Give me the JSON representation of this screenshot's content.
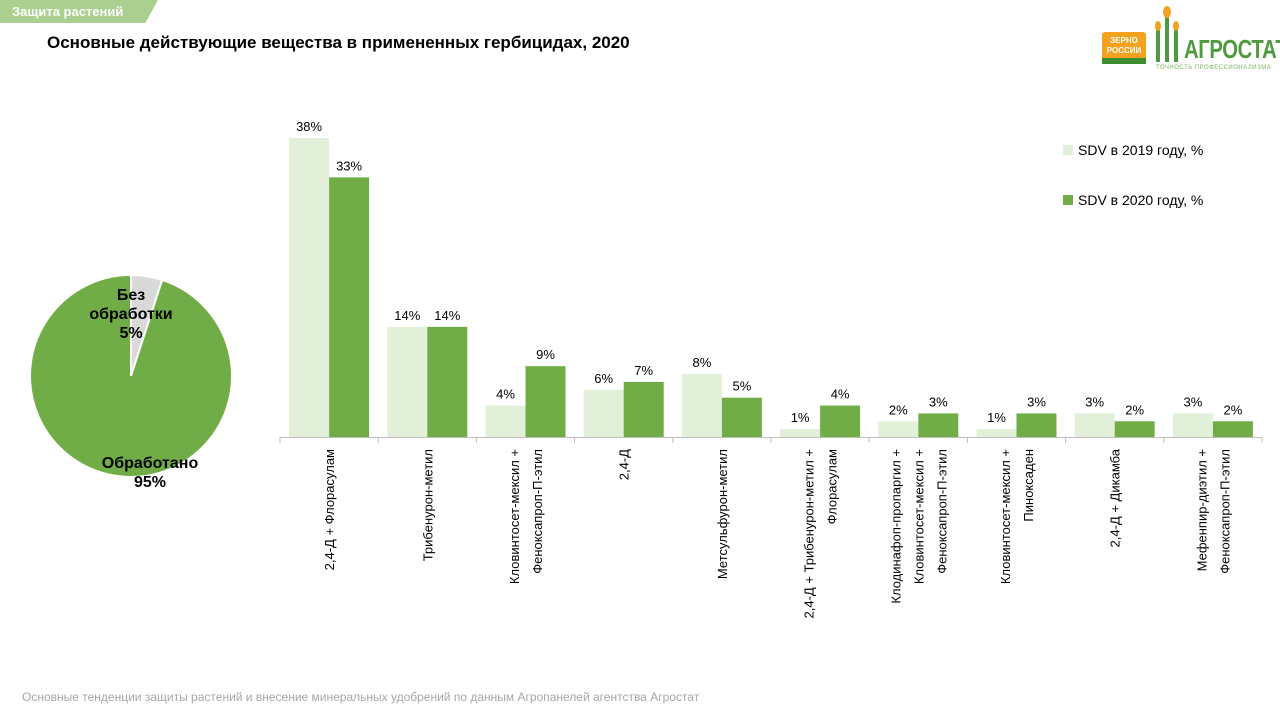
{
  "header": {
    "section_tag": "Защита растений",
    "title": "Основные действующие вещества в примененных гербицидах, 2020"
  },
  "logo": {
    "zerno_line1": "ЗЕРНО",
    "zerno_line2": "РОССИИ",
    "brand": "АГРОСТАТ",
    "tagline": "ТОЧНОСТЬ ПРОФЕССИОНАЛИЗМА"
  },
  "footer": {
    "text": "Основные тенденции защиты растений и внесение минеральных удобрений  по данным Агропанелей агентства Агростат"
  },
  "colors": {
    "series_2019": "#e2f0d9",
    "series_2020": "#70ad47",
    "pie_untreated": "#d9d9d9",
    "pie_treated": "#70ad47",
    "axis": "#bfbfbf"
  },
  "chart_data": [
    {
      "type": "pie",
      "slices": [
        {
          "label_lines": [
            "Без",
            "обработки",
            "5%"
          ],
          "value": 5
        },
        {
          "label_lines": [
            "Обработано",
            "95%"
          ],
          "value": 95
        }
      ]
    },
    {
      "type": "bar",
      "categories": [
        [
          "2,4-Д + Флорасулам"
        ],
        [
          "Трибенурон-метил"
        ],
        [
          "Кловинтосет-мексил +",
          "Феноксапроп-П-этил"
        ],
        [
          "2,4-Д"
        ],
        [
          "Метсульфурон-метил"
        ],
        [
          "2,4-Д + Трибенурон-метил +",
          "Флорасулам"
        ],
        [
          "Клодинафоп-пропаргил +",
          "Кловинтосет-мексил +",
          "Феноксапроп-П-этил"
        ],
        [
          "Кловинтосет-мексил +",
          "Пиноксаден"
        ],
        [
          "2,4-Д + Дикамба"
        ],
        [
          "Мефенпир-диэтил +",
          "Феноксапроп-П-этил"
        ]
      ],
      "series": [
        {
          "name": "SDV в 2019 году, %",
          "values": [
            38,
            14,
            4,
            6,
            8,
            1,
            2,
            1,
            3,
            3
          ],
          "labels": [
            "38%",
            "14%",
            "4%",
            "6%",
            "8%",
            "1%",
            "2%",
            "1%",
            "3%",
            "3%"
          ]
        },
        {
          "name": "SDV в 2020 году, %",
          "values": [
            33,
            14,
            9,
            7,
            5,
            4,
            3,
            3,
            2,
            2
          ],
          "labels": [
            "33%",
            "14%",
            "9%",
            "7%",
            "5%",
            "4%",
            "3%",
            "3%",
            "2%",
            "2%"
          ]
        }
      ],
      "ylim": [
        0,
        38
      ],
      "legend": "right",
      "grid": false
    }
  ]
}
